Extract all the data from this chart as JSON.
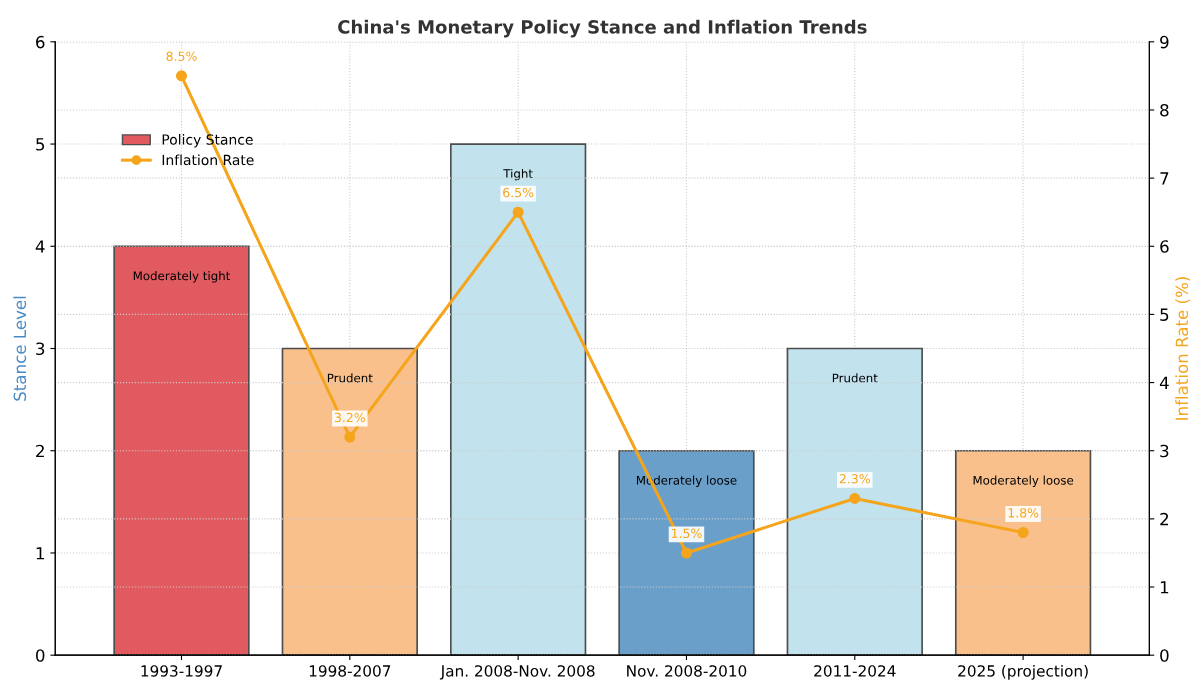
{
  "chart_data": {
    "type": "bar",
    "title": "China's Monetary Policy Stance and Inflation Trends",
    "categories": [
      "1993-1997",
      "1998-2007",
      "Jan. 2008-Nov. 2008",
      "Nov. 2008-2010",
      "2011-2024",
      "2025 (projection)"
    ],
    "series": [
      {
        "name": "Policy Stance",
        "colors": [
          "#e05a60",
          "#f9c08c",
          "#c2e2ee",
          "#6a9fca",
          "#c2e2ee",
          "#f9c08c"
        ],
        "values": [
          4,
          3,
          5,
          2,
          3,
          2
        ]
      },
      {
        "name": "Inflation Rate",
        "type": "line",
        "axis": "y2",
        "color": "#f4a51c",
        "marker": "circle",
        "values": [
          8.5,
          3.2,
          6.5,
          1.5,
          2.3,
          1.8
        ],
        "value_labels": [
          "8.5%",
          "3.2%",
          "6.5%",
          "1.5%",
          "2.3%",
          "1.8%"
        ]
      }
    ],
    "annotations": [
      "Moderately tight",
      "Prudent",
      "Tight",
      "Moderately loose",
      "Prudent",
      "Moderately loose"
    ],
    "ylabel": "Stance Level",
    "y2label": "Inflation Rate (%)",
    "ylim": [
      0,
      6
    ],
    "yticks": [
      0,
      1,
      2,
      3,
      4,
      5,
      6
    ],
    "y2lim": [
      0,
      9
    ],
    "y2ticks": [
      0,
      1,
      2,
      3,
      4,
      5,
      6,
      7,
      8,
      9
    ],
    "grid": true,
    "legend": "top left"
  }
}
